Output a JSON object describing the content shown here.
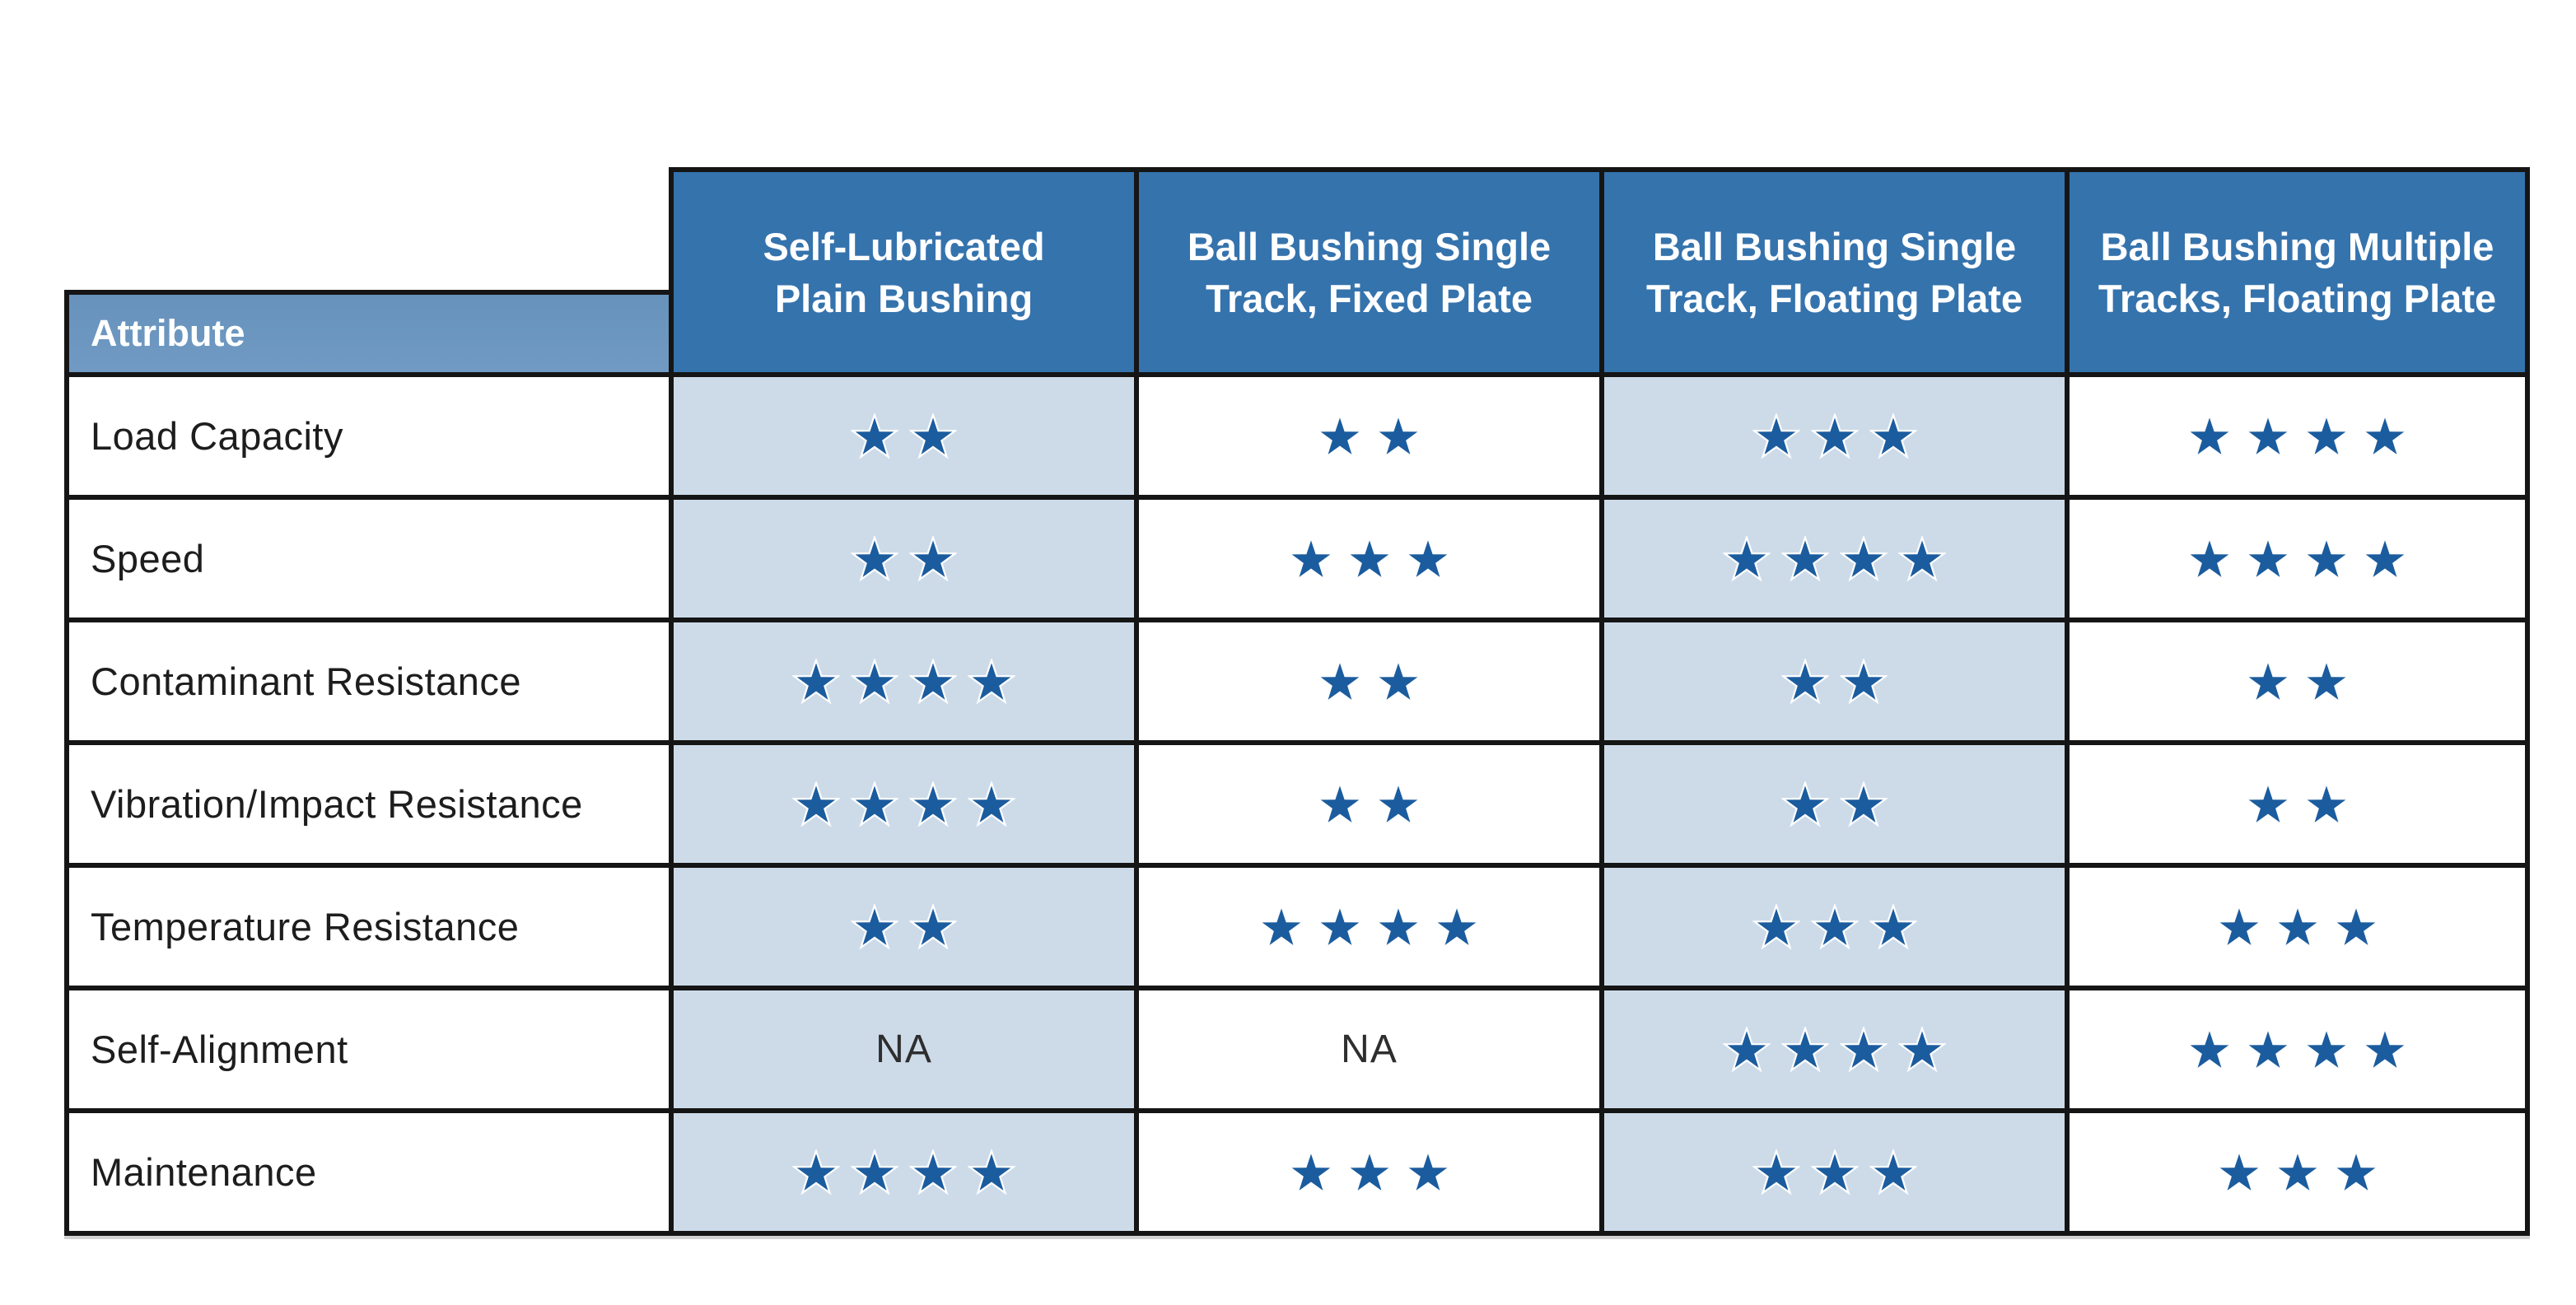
{
  "colors": {
    "header_blue": "#3573ad",
    "attribute_band_blue": "#6b96be",
    "shaded_cell_blue": "#cddbe9",
    "star_blue": "#1b5c9e",
    "border_black": "#151515"
  },
  "table": {
    "attribute_header": "Attribute",
    "na_label": "NA",
    "columns": [
      {
        "label": "Self-Lubricated\nPlain Bushing",
        "shaded": true
      },
      {
        "label": "Ball Bushing Single\nTrack, Fixed Plate",
        "shaded": false
      },
      {
        "label": "Ball Bushing Single\nTrack, Floating Plate",
        "shaded": true
      },
      {
        "label": "Ball Bushing Multiple\nTracks, Floating Plate",
        "shaded": false
      }
    ],
    "rows": [
      {
        "attribute": "Load Capacity",
        "ratings": [
          2,
          2,
          3,
          4
        ]
      },
      {
        "attribute": "Speed",
        "ratings": [
          2,
          3,
          4,
          4
        ]
      },
      {
        "attribute": "Contaminant Resistance",
        "ratings": [
          4,
          2,
          2,
          2
        ]
      },
      {
        "attribute": "Vibration/Impact Resistance",
        "ratings": [
          4,
          2,
          2,
          2
        ]
      },
      {
        "attribute": "Temperature Resistance",
        "ratings": [
          2,
          4,
          3,
          3
        ]
      },
      {
        "attribute": "Self-Alignment",
        "ratings": [
          "NA",
          "NA",
          4,
          4
        ]
      },
      {
        "attribute": "Maintenance",
        "ratings": [
          4,
          3,
          3,
          3
        ]
      }
    ]
  }
}
